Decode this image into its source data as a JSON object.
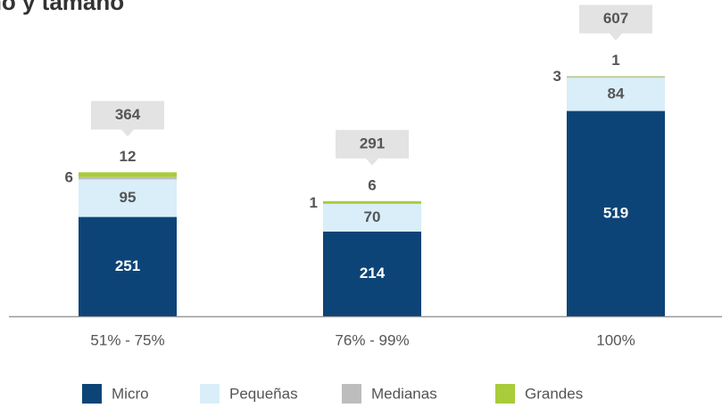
{
  "chart_data": {
    "type": "stacked_bar",
    "title": "ño y tamaño",
    "categories": [
      "51% - 75%",
      "76% - 99%",
      "100%"
    ],
    "series": [
      {
        "name": "Micro",
        "color": "#0d4477",
        "values": [
          251,
          214,
          519
        ]
      },
      {
        "name": "Pequeñas",
        "color": "#d9eef9",
        "values": [
          95,
          70,
          84
        ]
      },
      {
        "name": "Medianas",
        "color": "#bdbdbd",
        "values": [
          6,
          1,
          3
        ]
      },
      {
        "name": "Grandes",
        "color": "#a8cc3a",
        "values": [
          12,
          6,
          1
        ]
      }
    ],
    "totals": [
      364,
      291,
      607
    ]
  }
}
